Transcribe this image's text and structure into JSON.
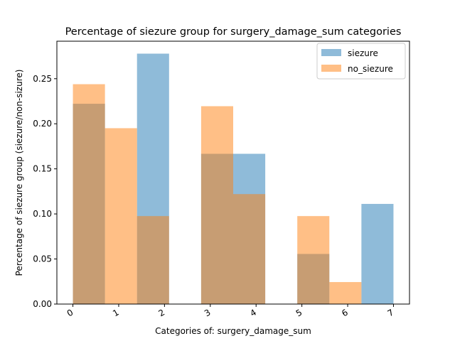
{
  "chart_data": {
    "type": "bar",
    "title": "Percentage of siezure group for surgery_damage_sum categories",
    "xlabel": "Categories of: surgery_damage_sum",
    "ylabel": "Percentage of siezure group (siezure/non-sizure)",
    "xlim": [
      -0.35,
      7.35
    ],
    "ylim": [
      0,
      0.2916
    ],
    "x_ticks": [
      0,
      1,
      2,
      3,
      4,
      5,
      6,
      7
    ],
    "y_ticks": [
      0.0,
      0.05,
      0.1,
      0.15,
      0.2,
      0.25
    ],
    "y_tick_labels": [
      "0.00",
      "0.05",
      "0.10",
      "0.15",
      "0.20",
      "0.25"
    ],
    "bin_edges": [
      0,
      0.7,
      1.4,
      2.1,
      2.8,
      3.5,
      4.2,
      4.9,
      5.6,
      6.3,
      7.0
    ],
    "series": [
      {
        "name": "siezure",
        "color": "#1f77b4",
        "alpha": 0.5,
        "values": [
          0.2222,
          0,
          0.2778,
          0,
          0.1667,
          0.1667,
          0,
          0.0556,
          0,
          0.1111
        ]
      },
      {
        "name": "no_siezure",
        "color": "#ff7f0e",
        "alpha": 0.5,
        "values": [
          0.2439,
          0.1951,
          0.0976,
          0,
          0.2195,
          0.122,
          0,
          0.0976,
          0.0244,
          0
        ]
      }
    ],
    "grid": false,
    "legend_position": "upper right"
  }
}
